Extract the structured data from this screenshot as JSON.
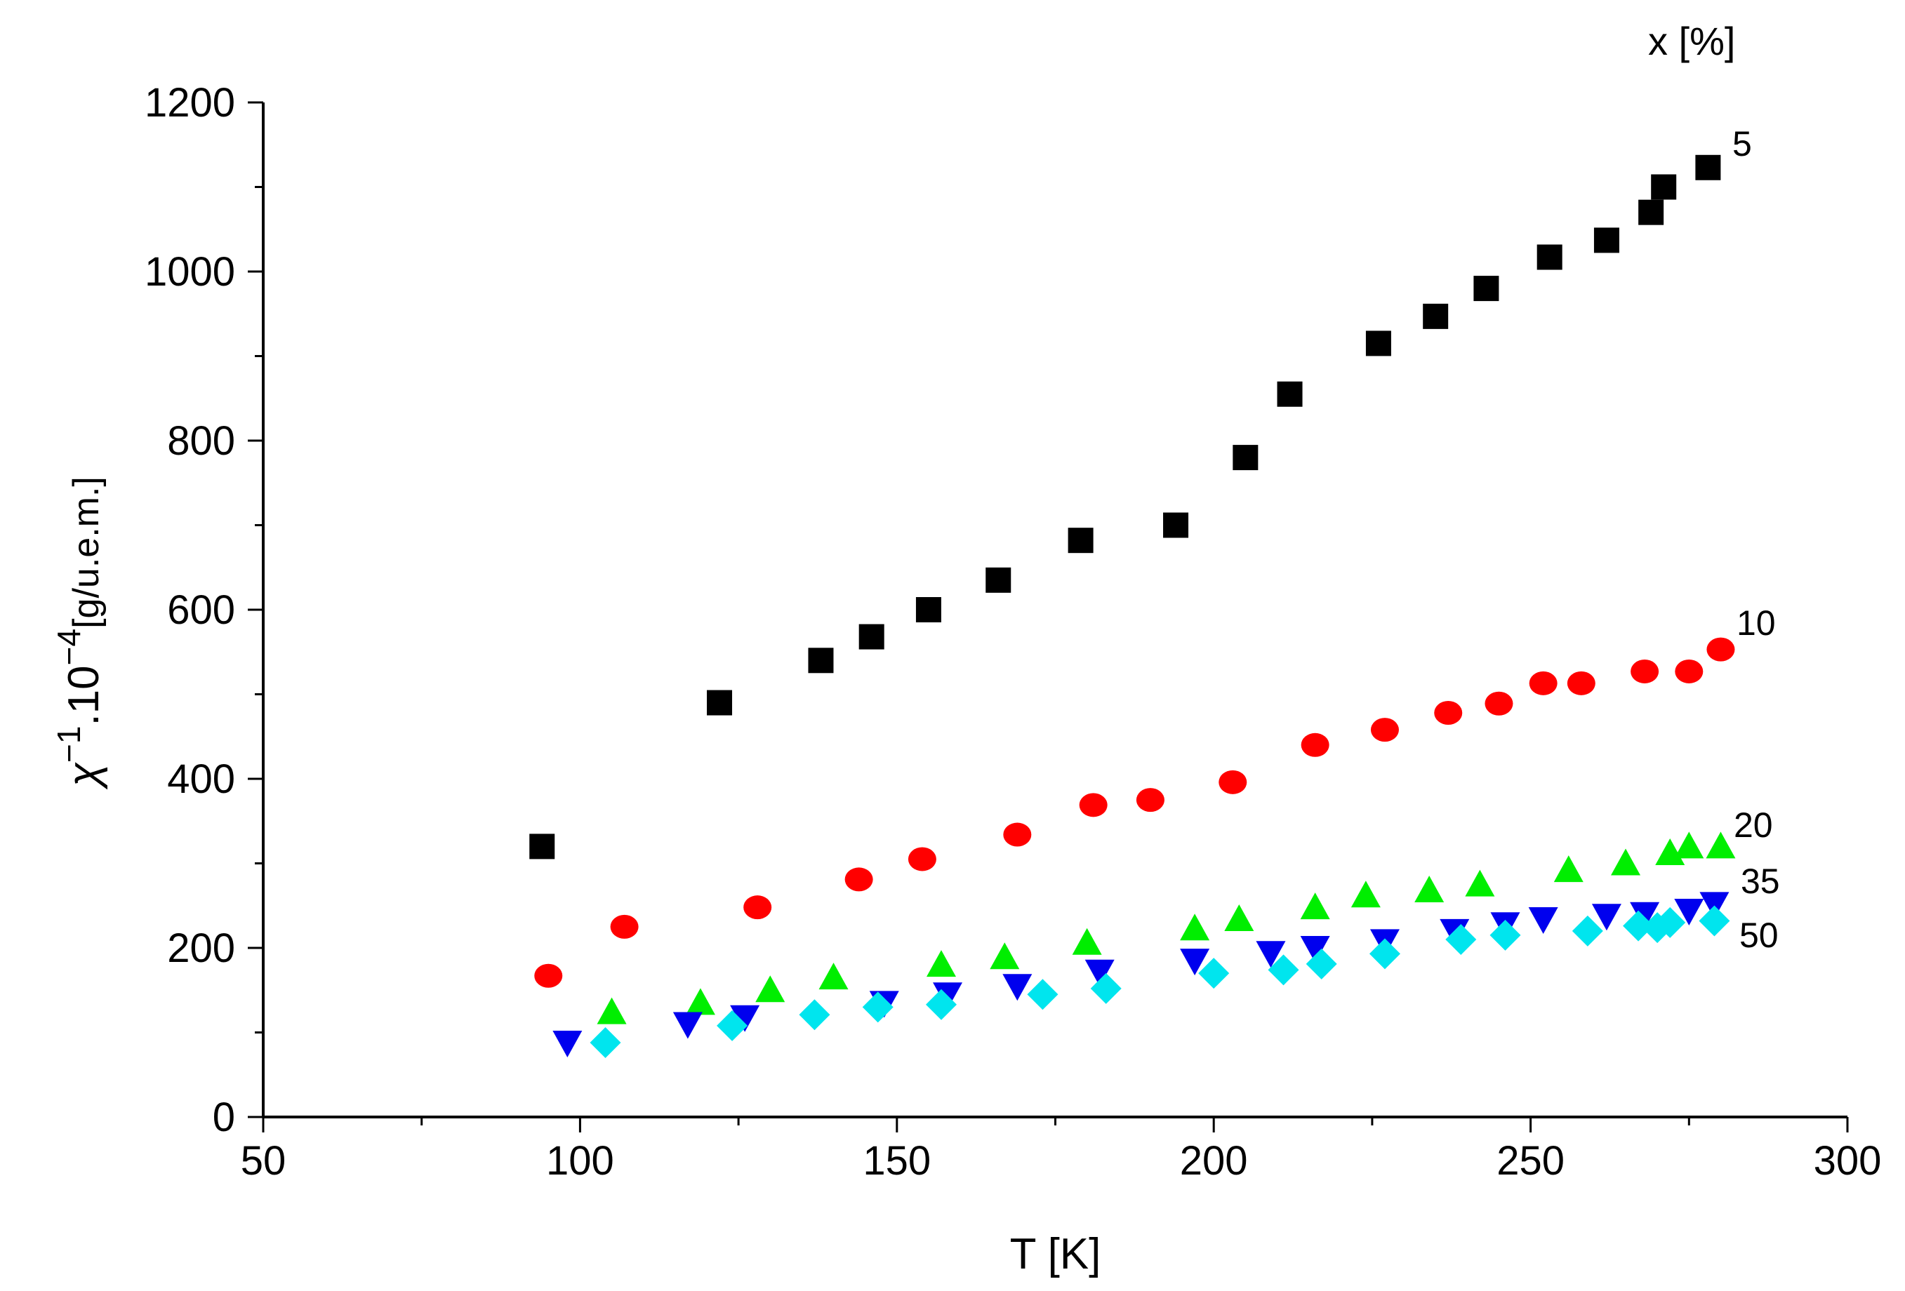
{
  "chart_data": {
    "type": "scatter",
    "xlabel": "T [K]",
    "ylabel": {
      "base": "χ",
      "sup1": "−1",
      "mid": ".10",
      "sup2": "−4",
      "unit": "[g/u.e.m.]"
    },
    "xlim": [
      50,
      300
    ],
    "ylim": [
      0,
      1200
    ],
    "xticks": [
      50,
      100,
      150,
      200,
      250,
      300
    ],
    "yticks": [
      0,
      200,
      400,
      600,
      800,
      1000,
      1200
    ],
    "grid": false,
    "legend_title": "x [%]",
    "series": [
      {
        "name": "5",
        "marker": "square",
        "color": "#000000",
        "points": [
          [
            94,
            320
          ],
          [
            122,
            490
          ],
          [
            138,
            540
          ],
          [
            146,
            568
          ],
          [
            155,
            600
          ],
          [
            166,
            635
          ],
          [
            179,
            682
          ],
          [
            194,
            700
          ],
          [
            205,
            780
          ],
          [
            212,
            855
          ],
          [
            226,
            915
          ],
          [
            235,
            947
          ],
          [
            243,
            980
          ],
          [
            253,
            1017
          ],
          [
            262,
            1037
          ],
          [
            269,
            1070
          ],
          [
            271,
            1100
          ],
          [
            278,
            1123
          ]
        ]
      },
      {
        "name": "10",
        "marker": "circle",
        "color": "#ff0000",
        "points": [
          [
            95,
            167
          ],
          [
            107,
            225
          ],
          [
            128,
            248
          ],
          [
            144,
            281
          ],
          [
            154,
            305
          ],
          [
            169,
            334
          ],
          [
            181,
            369
          ],
          [
            190,
            375
          ],
          [
            203,
            396
          ],
          [
            216,
            440
          ],
          [
            227,
            458
          ],
          [
            237,
            478
          ],
          [
            245,
            489
          ],
          [
            252,
            513
          ],
          [
            258,
            513
          ],
          [
            268,
            527
          ],
          [
            275,
            527
          ],
          [
            280,
            553
          ]
        ]
      },
      {
        "name": "20",
        "marker": "triangle-up",
        "color": "#00ee00",
        "points": [
          [
            105,
            124
          ],
          [
            119,
            135
          ],
          [
            130,
            150
          ],
          [
            140,
            165
          ],
          [
            157,
            180
          ],
          [
            167,
            189
          ],
          [
            180,
            206
          ],
          [
            197,
            223
          ],
          [
            204,
            234
          ],
          [
            216,
            248
          ],
          [
            224,
            262
          ],
          [
            234,
            268
          ],
          [
            242,
            275
          ],
          [
            256,
            292
          ],
          [
            265,
            300
          ],
          [
            272,
            312
          ],
          [
            275,
            320
          ],
          [
            280,
            320
          ]
        ]
      },
      {
        "name": "35",
        "marker": "triangle-down",
        "color": "#0000ee",
        "points": [
          [
            98,
            88
          ],
          [
            117,
            110
          ],
          [
            126,
            118
          ],
          [
            148,
            135
          ],
          [
            158,
            145
          ],
          [
            169,
            155
          ],
          [
            182,
            172
          ],
          [
            197,
            185
          ],
          [
            209,
            194
          ],
          [
            216,
            200
          ],
          [
            227,
            208
          ],
          [
            238,
            220
          ],
          [
            246,
            228
          ],
          [
            252,
            234
          ],
          [
            262,
            238
          ],
          [
            268,
            240
          ],
          [
            275,
            244
          ],
          [
            279,
            252
          ]
        ]
      },
      {
        "name": "50",
        "marker": "diamond",
        "color": "#00e5ee",
        "points": [
          [
            104,
            88
          ],
          [
            124,
            108
          ],
          [
            137,
            121
          ],
          [
            147,
            130
          ],
          [
            157,
            133
          ],
          [
            173,
            145
          ],
          [
            183,
            152
          ],
          [
            200,
            170
          ],
          [
            211,
            174
          ],
          [
            217,
            181
          ],
          [
            227,
            193
          ],
          [
            239,
            210
          ],
          [
            246,
            215
          ],
          [
            259,
            220
          ],
          [
            267,
            226
          ],
          [
            270,
            224
          ],
          [
            272,
            230
          ],
          [
            279,
            232
          ]
        ]
      }
    ]
  }
}
